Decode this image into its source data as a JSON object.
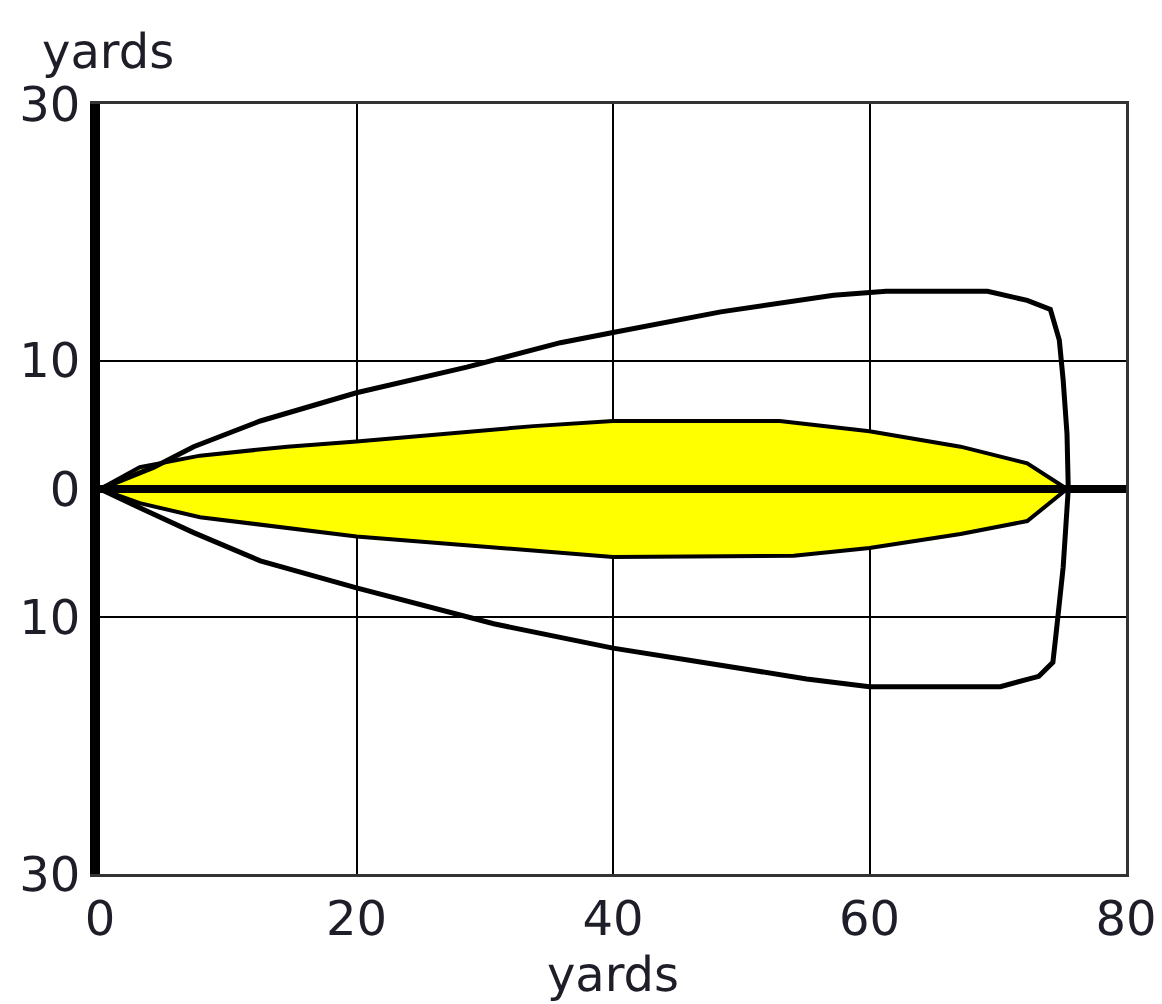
{
  "chart_data": {
    "type": "line",
    "xlabel": "yards",
    "ylabel": "yards",
    "xlim": [
      0,
      80
    ],
    "ylim": [
      -30,
      30
    ],
    "xticks": [
      0,
      20,
      40,
      60,
      80
    ],
    "yticks": [
      {
        "value": -30,
        "label": "30"
      },
      {
        "value": -10,
        "label": "10"
      },
      0,
      10,
      30
    ],
    "grid": true,
    "series": [
      {
        "type": "area",
        "color": "#ffff00",
        "x": [
          0,
          3.1,
          7.8,
          14.6,
          20,
          33.8,
          40,
          53,
          60,
          67.1,
          72.3,
          75.4,
          72.3,
          67.1,
          60,
          54.1,
          40,
          20,
          7.8,
          3.1,
          0
        ],
        "values": [
          0,
          1.7,
          2.6,
          3.3,
          3.7,
          4.9,
          5.3,
          5.3,
          4.5,
          3.3,
          2.0,
          0,
          -2.5,
          -3.5,
          -4.6,
          -5.2,
          -5.3,
          -3.7,
          -2.2,
          -1.1,
          0
        ]
      },
      {
        "type": "line",
        "color": "#000000",
        "x": [
          0,
          4.2,
          7.3,
          12.5,
          20,
          28.6,
          35.9,
          40,
          48.4,
          57.2,
          61.3,
          69.2,
          72.3,
          74.1,
          74.8,
          75.1,
          75.4,
          75.5,
          null,
          0,
          3.6,
          7.3,
          12.5,
          20,
          30.7,
          40,
          55.1,
          60,
          70.2,
          73.2,
          74.3,
          74.6,
          75.1,
          75.5
        ],
        "values": [
          0,
          1.7,
          3.3,
          5.3,
          7.5,
          9.5,
          11.4,
          12.2,
          13.8,
          15.1,
          15.4,
          15.4,
          14.7,
          14,
          11.6,
          8.5,
          4.3,
          0,
          null,
          0,
          -1.7,
          -3.4,
          -5.6,
          -7.7,
          -10.5,
          -12.4,
          -14.8,
          -15.4,
          -15.4,
          -14.6,
          -13.5,
          -10.8,
          -6.1,
          0
        ]
      }
    ],
    "ref_lines": [
      {
        "axis": "y",
        "value": 0,
        "color": "#000000"
      }
    ]
  }
}
